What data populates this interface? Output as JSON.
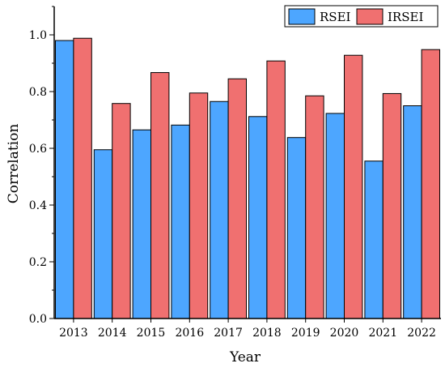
{
  "chart_data": {
    "type": "bar",
    "title": "",
    "xlabel": "Year",
    "ylabel": "Correlation",
    "categories": [
      "2013",
      "2014",
      "2015",
      "2016",
      "2017",
      "2018",
      "2019",
      "2020",
      "2021",
      "2022"
    ],
    "series": [
      {
        "name": "RSEI",
        "color": "#4da6ff",
        "values": [
          0.98,
          0.595,
          0.665,
          0.682,
          0.765,
          0.712,
          0.638,
          0.723,
          0.555,
          0.75
        ]
      },
      {
        "name": "IRSEI",
        "color": "#f07070",
        "values": [
          0.988,
          0.758,
          0.867,
          0.795,
          0.845,
          0.908,
          0.785,
          0.928,
          0.793,
          0.948
        ]
      }
    ],
    "ylim": [
      0,
      1.1
    ],
    "yticks": [
      "0.0",
      "0.2",
      "0.4",
      "0.6",
      "0.8",
      "1.0"
    ],
    "grid": false,
    "legend_position": "top-right"
  }
}
